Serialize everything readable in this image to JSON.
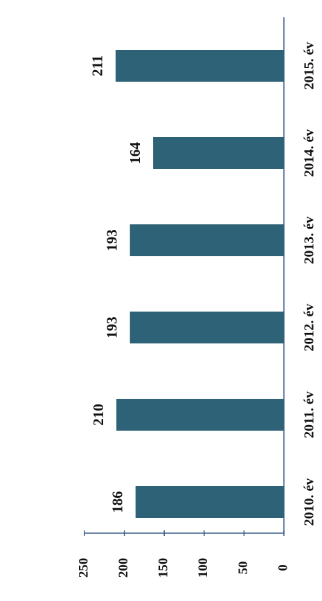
{
  "chart_data": {
    "type": "bar",
    "categories": [
      "2010. év",
      "2011. év",
      "2012. év",
      "2013. év",
      "2014. év",
      "2015. év"
    ],
    "values": [
      186,
      210,
      193,
      193,
      164,
      211
    ],
    "color": "#2e6276",
    "ylim": [
      0,
      250
    ],
    "yticks": [
      0,
      50,
      100,
      150,
      200,
      250
    ]
  }
}
